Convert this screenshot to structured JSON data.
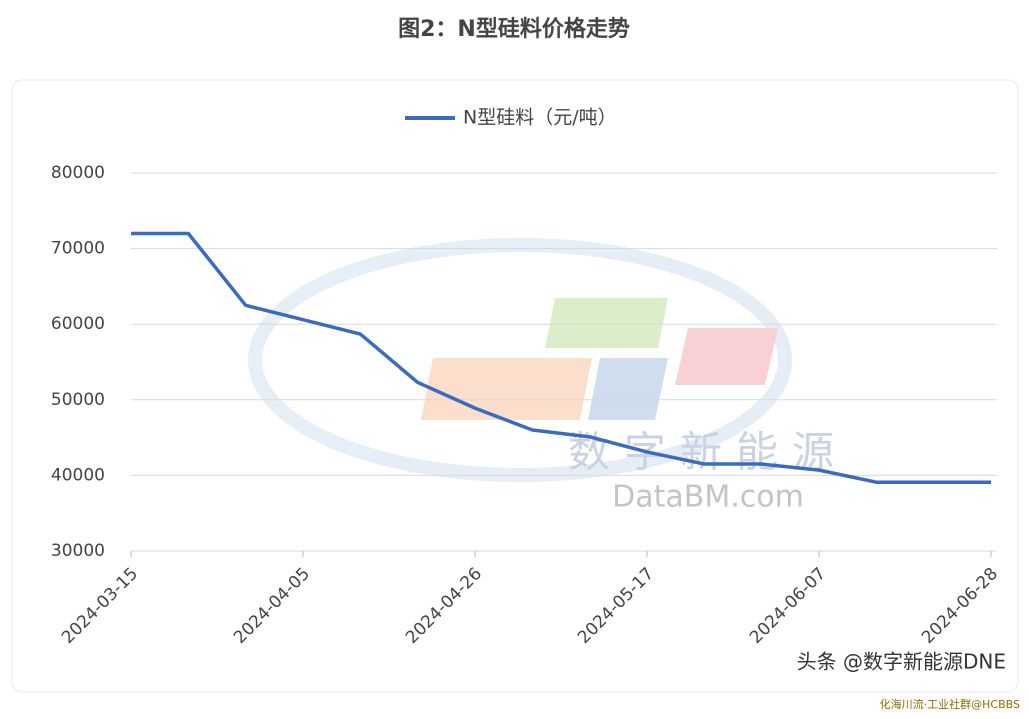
{
  "chart_data": {
    "type": "line",
    "title": "图2：N型硅料价格走势",
    "categories": [
      "2024-03-15",
      null,
      null,
      "2024-04-05",
      null,
      null,
      "2024-04-26",
      null,
      null,
      "2024-05-17",
      null,
      null,
      "2024-06-07",
      null,
      null,
      "2024-06-28"
    ],
    "series": [
      {
        "name": "N型硅料（元/吨）",
        "color": "#3a6bbf",
        "values": [
          72000,
          72000,
          62500,
          60600,
          58700,
          52300,
          48900,
          46000,
          45100,
          43100,
          41500,
          41500,
          40700,
          39100,
          39100,
          39100
        ]
      }
    ],
    "ylim": [
      30000,
      80000
    ],
    "yticks": [
      30000,
      40000,
      50000,
      60000,
      70000,
      80000
    ],
    "grid": true,
    "watermarks": [
      "数字新能源",
      "DataBM.com",
      "头条 @数字新能源DNE",
      "化海川流·工业社群@HCBBS"
    ]
  }
}
